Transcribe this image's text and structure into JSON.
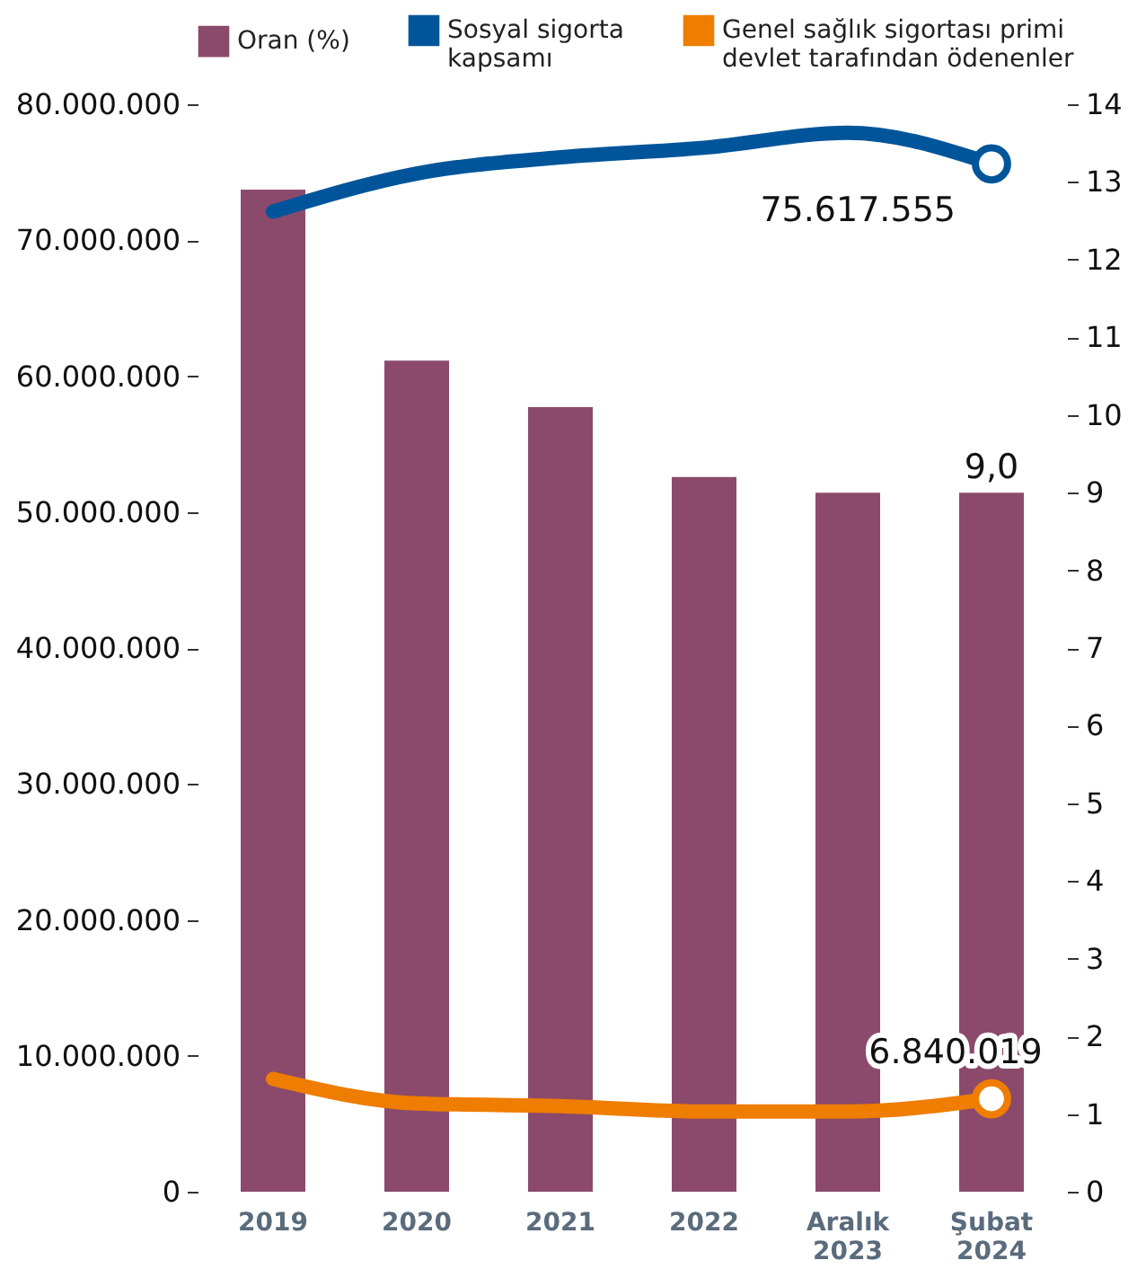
{
  "chart_data": {
    "type": "bar",
    "categories": [
      "2019",
      "2020",
      "2021",
      "2022",
      "Aralık 2023",
      "Şubat 2024"
    ],
    "series": [
      {
        "name": "Oran (%)",
        "axis": "y2",
        "color": "#8b4a6b",
        "values": [
          12.9,
          10.7,
          10.1,
          9.2,
          9.0,
          9.0
        ],
        "value_labels": [
          null,
          null,
          null,
          null,
          null,
          "9,0"
        ]
      },
      {
        "name": "Sosyal sigorta\nkapsamı",
        "type": "line",
        "color": "#00559a",
        "values": [
          72100000,
          74900000,
          76100000,
          76800000,
          77900000,
          75617555
        ],
        "value_labels": [
          null,
          null,
          null,
          null,
          null,
          "75.617.555"
        ]
      },
      {
        "name": "Genel sağlık sigortası primi\ndevlet tarafından ödenenler",
        "type": "line",
        "color": "#ef7d00",
        "values": [
          8300000,
          6500000,
          6300000,
          5900000,
          5900000,
          6840019
        ],
        "value_labels": [
          null,
          null,
          null,
          null,
          null,
          "6.840.019"
        ]
      }
    ],
    "ylim": [
      0,
      80000000
    ],
    "yticks": [
      {
        "value": 0,
        "label": "0"
      },
      {
        "value": 10000000,
        "label": "10.000.000"
      },
      {
        "value": 20000000,
        "label": "20.000.000"
      },
      {
        "value": 30000000,
        "label": "30.000.000"
      },
      {
        "value": 40000000,
        "label": "40.000.000"
      },
      {
        "value": 50000000,
        "label": "50.000.000"
      },
      {
        "value": 60000000,
        "label": "60.000.000"
      },
      {
        "value": 70000000,
        "label": "70.000.000"
      },
      {
        "value": 80000000,
        "label": "80.000.000"
      }
    ],
    "y2lim": [
      0,
      14
    ],
    "y2ticks": [
      0,
      1,
      2,
      3,
      4,
      5,
      6,
      7,
      8,
      9,
      10,
      11,
      12,
      13,
      14
    ],
    "legend": "top",
    "grid": false,
    "line_style": "solid"
  }
}
